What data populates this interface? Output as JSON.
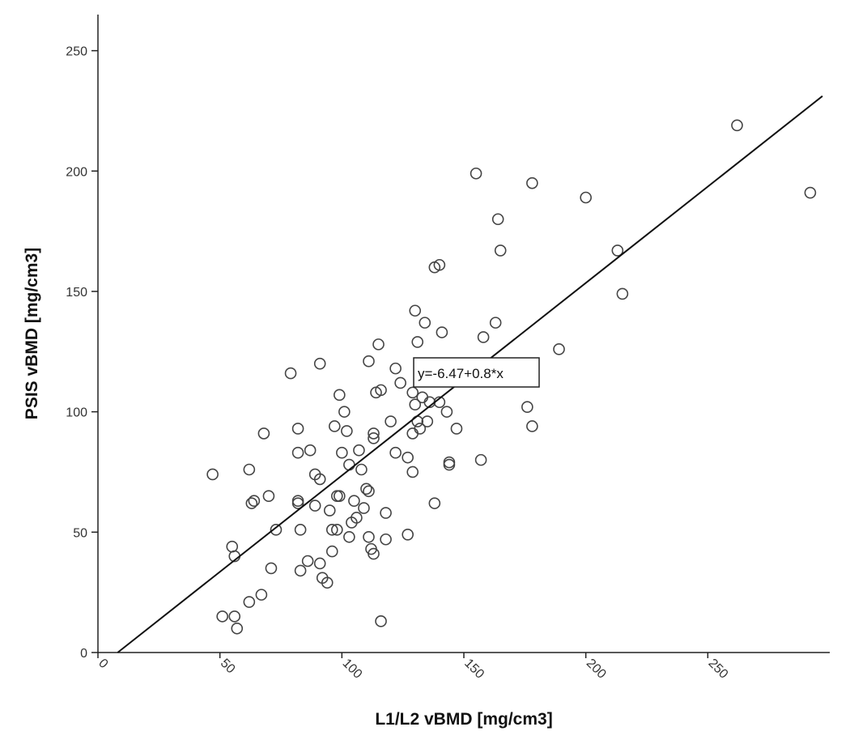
{
  "chart_data": {
    "type": "scatter",
    "title": "",
    "xlabel": "L1/L2 vBMD [mg/cm3]",
    "ylabel": "PSIS vBMD [mg/cm3]",
    "xlim": [
      0,
      300
    ],
    "ylim": [
      0,
      265
    ],
    "x_ticks": [
      0,
      50,
      100,
      150,
      200,
      250
    ],
    "y_ticks": [
      0,
      50,
      100,
      150,
      200,
      250
    ],
    "marker": "open-circle",
    "grid": false,
    "legend": "none",
    "regression": {
      "intercept": -6.47,
      "slope": 0.8,
      "label": "y=-6.47+0.8*x"
    },
    "points": [
      [
        47,
        74
      ],
      [
        51,
        15
      ],
      [
        55,
        44
      ],
      [
        56,
        15
      ],
      [
        56,
        40
      ],
      [
        57,
        10
      ],
      [
        62,
        76
      ],
      [
        62,
        21
      ],
      [
        63,
        62
      ],
      [
        64,
        63
      ],
      [
        67,
        24
      ],
      [
        68,
        91
      ],
      [
        70,
        65
      ],
      [
        71,
        35
      ],
      [
        73,
        51
      ],
      [
        79,
        116
      ],
      [
        82,
        93
      ],
      [
        82,
        63
      ],
      [
        82,
        62
      ],
      [
        83,
        51
      ],
      [
        82,
        83
      ],
      [
        83,
        34
      ],
      [
        86,
        38
      ],
      [
        87,
        84
      ],
      [
        89,
        61
      ],
      [
        89,
        74
      ],
      [
        91,
        120
      ],
      [
        91,
        72
      ],
      [
        91,
        37
      ],
      [
        92,
        31
      ],
      [
        94,
        29
      ],
      [
        95,
        59
      ],
      [
        96,
        51
      ],
      [
        96,
        42
      ],
      [
        97,
        94
      ],
      [
        98,
        65
      ],
      [
        98,
        51
      ],
      [
        99,
        65
      ],
      [
        99,
        107
      ],
      [
        100,
        83
      ],
      [
        101,
        100
      ],
      [
        102,
        92
      ],
      [
        103,
        78
      ],
      [
        103,
        48
      ],
      [
        104,
        54
      ],
      [
        105,
        63
      ],
      [
        106,
        56
      ],
      [
        107,
        84
      ],
      [
        108,
        76
      ],
      [
        109,
        60
      ],
      [
        110,
        68
      ],
      [
        111,
        48
      ],
      [
        111,
        121
      ],
      [
        111,
        67
      ],
      [
        112,
        43
      ],
      [
        113,
        89
      ],
      [
        113,
        91
      ],
      [
        113,
        41
      ],
      [
        114,
        108
      ],
      [
        115,
        128
      ],
      [
        116,
        13
      ],
      [
        116,
        109
      ],
      [
        118,
        58
      ],
      [
        118,
        47
      ],
      [
        120,
        96
      ],
      [
        122,
        118
      ],
      [
        122,
        83
      ],
      [
        124,
        112
      ],
      [
        127,
        81
      ],
      [
        127,
        49
      ],
      [
        129,
        108
      ],
      [
        129,
        91
      ],
      [
        129,
        75
      ],
      [
        130,
        142
      ],
      [
        130,
        103
      ],
      [
        131,
        96
      ],
      [
        131,
        129
      ],
      [
        132,
        93
      ],
      [
        133,
        106
      ],
      [
        134,
        137
      ],
      [
        135,
        96
      ],
      [
        136,
        104
      ],
      [
        138,
        160
      ],
      [
        138,
        62
      ],
      [
        140,
        161
      ],
      [
        140,
        104
      ],
      [
        141,
        133
      ],
      [
        143,
        100
      ],
      [
        144,
        79
      ],
      [
        144,
        78
      ],
      [
        147,
        93
      ],
      [
        155,
        199
      ],
      [
        157,
        80
      ],
      [
        158,
        131
      ],
      [
        163,
        137
      ],
      [
        164,
        180
      ],
      [
        165,
        167
      ],
      [
        176,
        102
      ],
      [
        178,
        94
      ],
      [
        178,
        195
      ],
      [
        189,
        126
      ],
      [
        200,
        189
      ],
      [
        213,
        167
      ],
      [
        215,
        149
      ],
      [
        262,
        219
      ],
      [
        292,
        191
      ]
    ]
  }
}
